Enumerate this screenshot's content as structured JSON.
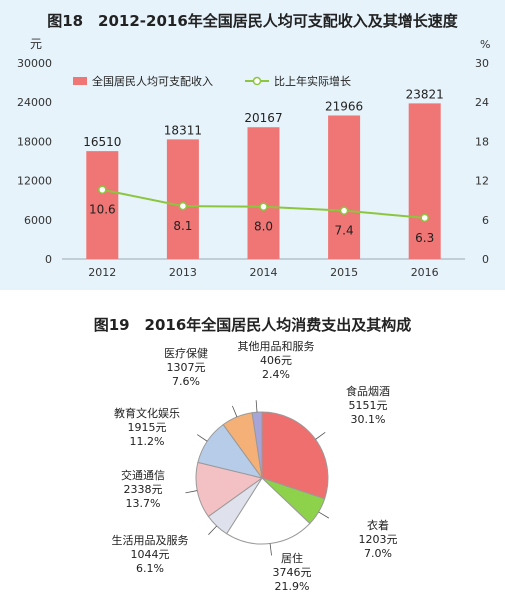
{
  "chart_data": [
    {
      "type": "bar",
      "title": "图18　2012-2016年全国居民人均可支配收入及其增长速度",
      "categories": [
        "2012",
        "2013",
        "2014",
        "2015",
        "2016"
      ],
      "series": [
        {
          "name": "全国居民人均可支配收入",
          "type": "bar",
          "axis": "left",
          "color": "#f07575",
          "values": [
            16510,
            18311,
            20167,
            21966,
            23821
          ]
        },
        {
          "name": "比上年实际增长",
          "type": "line",
          "axis": "right",
          "color": "#8cc63e",
          "values": [
            10.6,
            8.1,
            8.0,
            7.4,
            6.3
          ]
        }
      ],
      "ylabel_left": "元",
      "ylabel_right": "%",
      "ylim_left": [
        0,
        30000
      ],
      "ylim_right": [
        0,
        30
      ],
      "yticks_left": [
        "0",
        "6000",
        "12000",
        "18000",
        "24000",
        "30000"
      ],
      "yticks_right": [
        "0",
        "6",
        "12",
        "18",
        "24",
        "30"
      ],
      "legend": "top",
      "grid": false
    },
    {
      "type": "pie",
      "title": "图19　2016年全国居民人均消费支出及其构成",
      "slices": [
        {
          "name": "食品烟酒",
          "amount": "5151元",
          "percent_label": "30.1%",
          "value": 30.1,
          "color": "#ef6f6f"
        },
        {
          "name": "衣着",
          "amount": "1203元",
          "percent_label": "7.0%",
          "value": 7.0,
          "color": "#8ed24b"
        },
        {
          "name": "居住",
          "amount": "3746元",
          "percent_label": "21.9%",
          "value": 21.9,
          "color": "#ffffff"
        },
        {
          "name": "生活用品及服务",
          "amount": "1044元",
          "percent_label": "6.1%",
          "value": 6.1,
          "color": "#dfe2ec"
        },
        {
          "name": "交通通信",
          "amount": "2338元",
          "percent_label": "13.7%",
          "value": 13.7,
          "color": "#f3c0c4"
        },
        {
          "name": "教育文化娱乐",
          "amount": "1915元",
          "percent_label": "11.2%",
          "value": 11.2,
          "color": "#b6cce8"
        },
        {
          "name": "医疗保健",
          "amount": "1307元",
          "percent_label": "7.6%",
          "value": 7.6,
          "color": "#f5b077"
        },
        {
          "name": "其他用品和服务",
          "amount": "406元",
          "percent_label": "2.4%",
          "value": 2.4,
          "color": "#a7a4d8"
        }
      ]
    }
  ]
}
